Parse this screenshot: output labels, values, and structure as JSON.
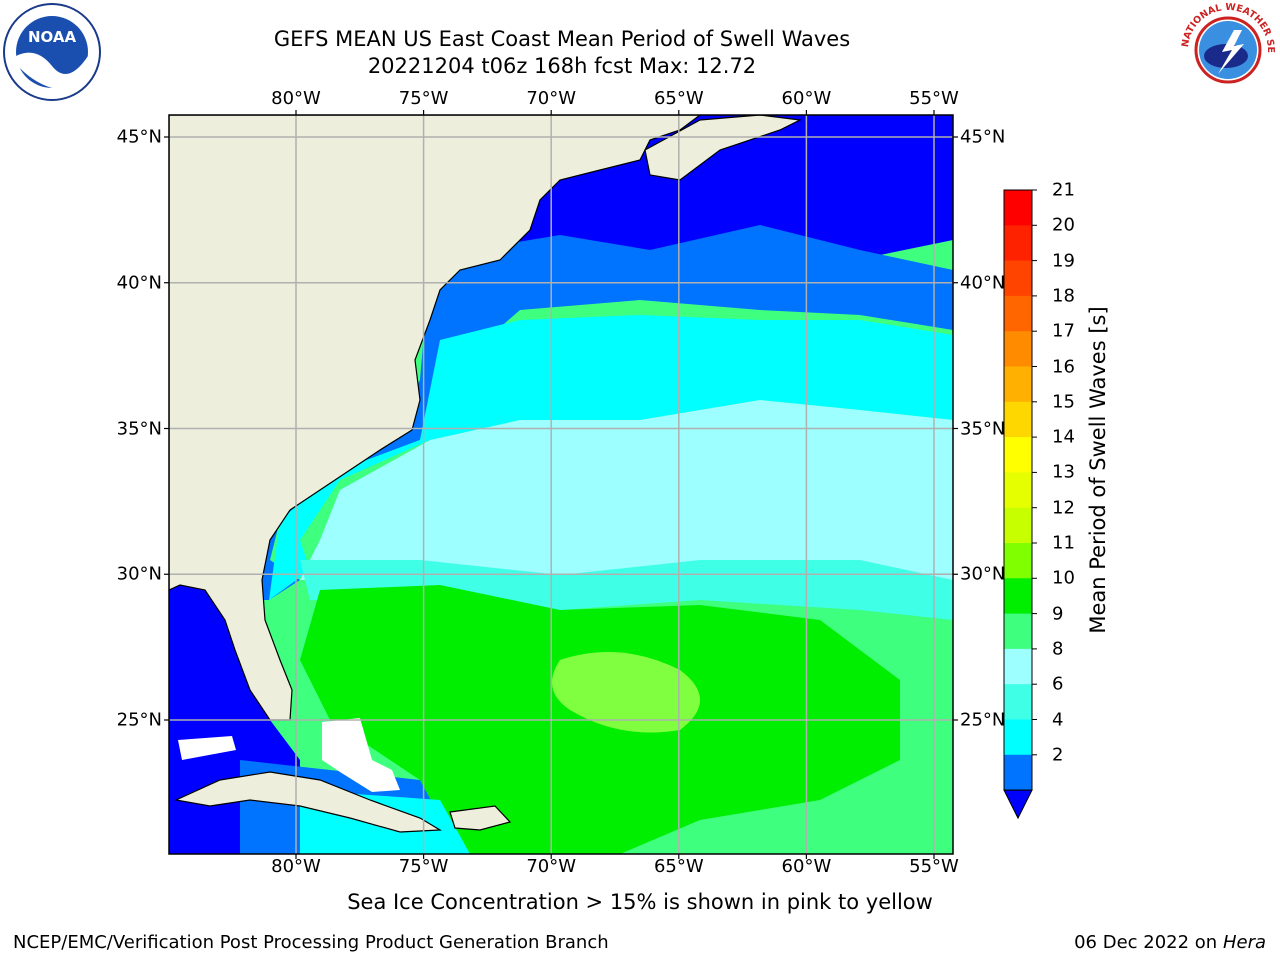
{
  "title": {
    "line1": "GEFS MEAN US East Coast Mean Period of Swell Waves",
    "line2": "20221204 t06z 168h fcst   Max: 12.72"
  },
  "map": {
    "lon_labels": [
      "80°W",
      "75°W",
      "70°W",
      "65°W",
      "60°W",
      "55°W"
    ],
    "lat_labels": [
      "45°N",
      "40°N",
      "35°N",
      "30°N",
      "25°N"
    ],
    "lons": [
      -80,
      -75,
      -70,
      -65,
      -60,
      -55
    ],
    "lats": [
      45,
      40,
      35,
      30,
      25
    ],
    "colors": {
      "land": "#EEEEDD",
      "ocean_navy": "#0000FF",
      "ocean_blue": "#0073FF",
      "ocean_cyan": "#00FFFF",
      "ocean_lightcyan": "#9DFFFF",
      "ocean_aqua": "#3FFFE7",
      "ocean_seagreen": "#3FFF7F",
      "ocean_green": "#00EE00",
      "ocean_lime": "#7FFF3F",
      "grid": "#B0B0B0"
    }
  },
  "colorbar": {
    "title": "Mean Period of Swell Waves [s]",
    "labels": [
      "21",
      "20",
      "19",
      "18",
      "17",
      "16",
      "15",
      "14",
      "13",
      "12",
      "11",
      "10",
      "9",
      "8",
      "6",
      "4",
      "2"
    ],
    "colors": [
      "#FF0000",
      "#FF2200",
      "#FF4400",
      "#FF6600",
      "#FF8C00",
      "#FFB000",
      "#FFD700",
      "#FFFF00",
      "#E6FF00",
      "#C8FF00",
      "#7FFF00",
      "#00EE00",
      "#3FFF7F",
      "#9DFFFF",
      "#3FFFE7",
      "#00FFFF",
      "#0073FF"
    ],
    "extend_color": "#0000FF"
  },
  "note": "Sea Ice Concentration > 15% is shown in pink to yellow",
  "credit_left": "NCEP/EMC/Verification Post Processing Product Generation Branch",
  "credit_right_date": "06 Dec 2022 on",
  "credit_right_machine": "Hera",
  "logos": {
    "noaa": "NOAA",
    "nws": "NATIONAL WEATHER SERVICE"
  }
}
